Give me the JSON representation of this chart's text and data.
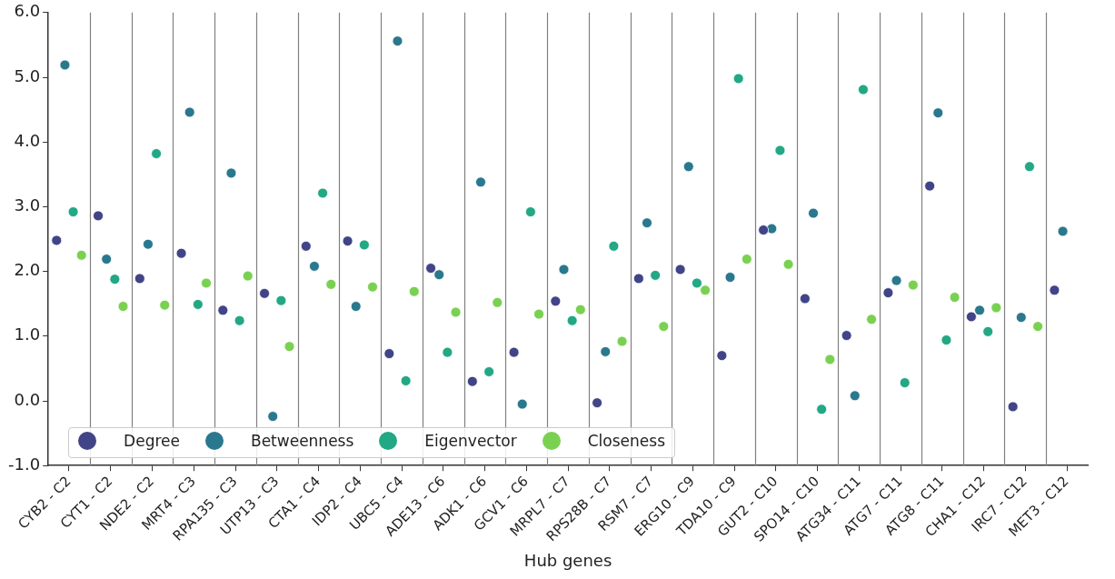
{
  "chart_data": {
    "type": "scatter",
    "xlabel": "Hub genes",
    "categories": [
      "CYB2 - C2",
      "CYT1 - C2",
      "NDE2 - C2",
      "MRT4 - C3",
      "RPA135 - C3",
      "UTP13 - C3",
      "CTA1 - C4",
      "IDP2 - C4",
      "UBC5 - C4",
      "ADE13 - C6",
      "ADK1 - C6",
      "GCV1 - C6",
      "MRPL7 - C7",
      "RPS28B - C7",
      "RSM7 - C7",
      "ERG10 - C9",
      "TDA10 - C9",
      "GUT2 - C10",
      "SPO14 - C10",
      "ATG34 - C11",
      "ATG7 - C11",
      "ATG8 - C11",
      "CHA1 - C12",
      "IRC7 - C12",
      "MET3 - C12"
    ],
    "series": [
      {
        "name": "Degree",
        "color": "#414487",
        "values": [
          2.48,
          2.86,
          1.89,
          2.28,
          1.4,
          1.66,
          2.39,
          2.47,
          0.73,
          2.05,
          0.3,
          0.75,
          1.54,
          -0.03,
          1.89,
          2.03,
          0.7,
          2.64,
          1.58,
          1.01,
          1.67,
          3.32,
          1.3,
          -0.09,
          1.71
        ]
      },
      {
        "name": "Betweenness",
        "color": "#2a788e",
        "values": [
          5.19,
          2.19,
          2.42,
          4.46,
          3.52,
          -0.24,
          2.08,
          1.46,
          5.56,
          1.95,
          3.38,
          -0.05,
          2.03,
          0.76,
          2.75,
          3.62,
          1.91,
          2.66,
          2.9,
          0.08,
          1.86,
          4.45,
          1.4,
          1.29,
          2.62
        ]
      },
      {
        "name": "Eigenvector",
        "color": "#22a884",
        "values": [
          2.92,
          1.88,
          3.82,
          1.49,
          1.24,
          1.55,
          3.21,
          2.41,
          0.31,
          0.75,
          0.45,
          2.92,
          1.24,
          2.39,
          1.94,
          1.82,
          4.98,
          3.87,
          -0.13,
          4.81,
          0.28,
          0.94,
          1.07,
          3.62,
          null
        ]
      },
      {
        "name": "Closeness",
        "color": "#7ad151",
        "values": [
          2.25,
          1.46,
          1.48,
          1.82,
          1.93,
          0.84,
          1.8,
          1.76,
          1.69,
          1.37,
          1.52,
          1.34,
          1.41,
          0.92,
          1.15,
          1.71,
          2.19,
          2.11,
          0.64,
          1.26,
          1.79,
          1.6,
          1.44,
          1.15,
          null
        ]
      }
    ],
    "ylim": [
      -1,
      6
    ],
    "yticks": [
      {
        "value": -1,
        "label": "-1.0"
      },
      {
        "value": 0,
        "label": "0.0"
      },
      {
        "value": 1,
        "label": "1.0"
      },
      {
        "value": 2,
        "label": "2.0"
      },
      {
        "value": 3,
        "label": "3.0"
      },
      {
        "value": 4,
        "label": "4.0"
      },
      {
        "value": 5,
        "label": "5.0"
      },
      {
        "value": 6,
        "label": "6.0"
      }
    ],
    "grid": "x",
    "legend": "bottom left",
    "marker": "circle"
  }
}
